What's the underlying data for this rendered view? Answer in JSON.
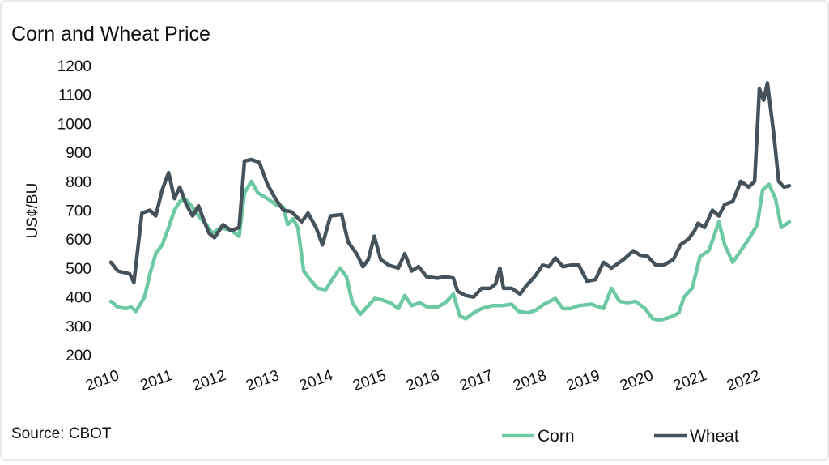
{
  "chart_data": {
    "type": "line",
    "title": "Corn and Wheat Price",
    "y_label": "US¢/BU",
    "source": "Source: CBOT",
    "xlim": [
      2009.95,
      2022.65
    ],
    "xticks": [
      2010,
      2011,
      2012,
      2013,
      2014,
      2015,
      2016,
      2017,
      2018,
      2019,
      2020,
      2021,
      2022
    ],
    "ylim": [
      200,
      1200
    ],
    "yticks": [
      200,
      300,
      400,
      500,
      600,
      700,
      800,
      900,
      1000,
      1100,
      1200
    ],
    "grid": false,
    "legend": "bottom-right",
    "series": [
      {
        "name": "Corn",
        "color": "#6cc9a4",
        "x": [
          2009.95,
          2010.08,
          2010.23,
          2010.33,
          2010.42,
          2010.58,
          2010.68,
          2010.79,
          2010.91,
          2011.03,
          2011.14,
          2011.24,
          2011.33,
          2011.44,
          2011.59,
          2011.74,
          2011.85,
          2012.0,
          2012.2,
          2012.35,
          2012.45,
          2012.58,
          2012.7,
          2012.88,
          2013.03,
          2013.18,
          2013.26,
          2013.36,
          2013.45,
          2013.56,
          2013.68,
          2013.82,
          2013.97,
          2014.09,
          2014.24,
          2014.36,
          2014.47,
          2014.62,
          2014.77,
          2014.89,
          2015.03,
          2015.18,
          2015.33,
          2015.45,
          2015.58,
          2015.73,
          2015.88,
          2016.06,
          2016.21,
          2016.36,
          2016.48,
          2016.59,
          2016.74,
          2016.89,
          2017.09,
          2017.27,
          2017.45,
          2017.58,
          2017.76,
          2017.91,
          2018.06,
          2018.27,
          2018.41,
          2018.56,
          2018.71,
          2018.94,
          2019.17,
          2019.32,
          2019.47,
          2019.62,
          2019.77,
          2019.95,
          2020.09,
          2020.23,
          2020.42,
          2020.58,
          2020.68,
          2020.83,
          2020.98,
          2021.14,
          2021.24,
          2021.33,
          2021.44,
          2021.59,
          2021.74,
          2021.89,
          2022.05,
          2022.15,
          2022.27,
          2022.39,
          2022.5,
          2022.65
        ],
        "values": [
          385,
          365,
          360,
          365,
          350,
          400,
          480,
          550,
          580,
          640,
          700,
          730,
          740,
          720,
          680,
          650,
          620,
          640,
          630,
          610,
          760,
          800,
          760,
          740,
          720,
          710,
          650,
          670,
          640,
          490,
          460,
          430,
          425,
          460,
          500,
          470,
          380,
          340,
          370,
          395,
          390,
          380,
          360,
          405,
          370,
          380,
          365,
          365,
          380,
          410,
          335,
          325,
          345,
          360,
          370,
          370,
          375,
          350,
          345,
          355,
          375,
          395,
          360,
          360,
          370,
          375,
          360,
          430,
          385,
          380,
          385,
          360,
          325,
          320,
          330,
          345,
          400,
          430,
          540,
          560,
          610,
          660,
          580,
          520,
          560,
          600,
          650,
          770,
          790,
          740,
          640,
          660
        ]
      },
      {
        "name": "Wheat",
        "color": "#45525a",
        "x": [
          2009.95,
          2010.08,
          2010.3,
          2010.38,
          2010.53,
          2010.68,
          2010.79,
          2010.91,
          2011.03,
          2011.14,
          2011.24,
          2011.36,
          2011.48,
          2011.59,
          2011.7,
          2011.79,
          2011.89,
          2012.05,
          2012.2,
          2012.35,
          2012.45,
          2012.58,
          2012.73,
          2012.88,
          2013.03,
          2013.18,
          2013.33,
          2013.52,
          2013.64,
          2013.79,
          2013.91,
          2014.06,
          2014.27,
          2014.39,
          2014.55,
          2014.67,
          2014.77,
          2014.88,
          2015.0,
          2015.15,
          2015.33,
          2015.45,
          2015.58,
          2015.71,
          2015.86,
          2016.06,
          2016.21,
          2016.36,
          2016.44,
          2016.59,
          2016.74,
          2016.89,
          2017.05,
          2017.15,
          2017.23,
          2017.3,
          2017.45,
          2017.61,
          2017.73,
          2017.88,
          2018.03,
          2018.15,
          2018.27,
          2018.41,
          2018.56,
          2018.71,
          2018.86,
          2019.02,
          2019.17,
          2019.32,
          2019.55,
          2019.73,
          2019.85,
          2020.0,
          2020.15,
          2020.3,
          2020.48,
          2020.61,
          2020.76,
          2020.88,
          2020.94,
          2021.06,
          2021.21,
          2021.33,
          2021.44,
          2021.59,
          2021.74,
          2021.89,
          2022.0,
          2022.09,
          2022.17,
          2022.24,
          2022.36,
          2022.45,
          2022.55,
          2022.65
        ],
        "values": [
          520,
          490,
          480,
          450,
          690,
          700,
          680,
          770,
          830,
          740,
          780,
          720,
          680,
          715,
          660,
          620,
          605,
          650,
          630,
          640,
          870,
          875,
          865,
          790,
          740,
          700,
          695,
          660,
          690,
          640,
          580,
          680,
          685,
          590,
          550,
          505,
          530,
          610,
          530,
          510,
          500,
          550,
          490,
          505,
          470,
          465,
          470,
          465,
          420,
          405,
          400,
          430,
          430,
          445,
          500,
          430,
          430,
          410,
          440,
          470,
          510,
          505,
          535,
          505,
          510,
          510,
          455,
          460,
          520,
          500,
          530,
          560,
          545,
          540,
          510,
          510,
          530,
          580,
          600,
          630,
          655,
          640,
          700,
          680,
          720,
          730,
          800,
          780,
          800,
          1120,
          1080,
          1140,
          960,
          800,
          780,
          785
        ]
      }
    ]
  }
}
